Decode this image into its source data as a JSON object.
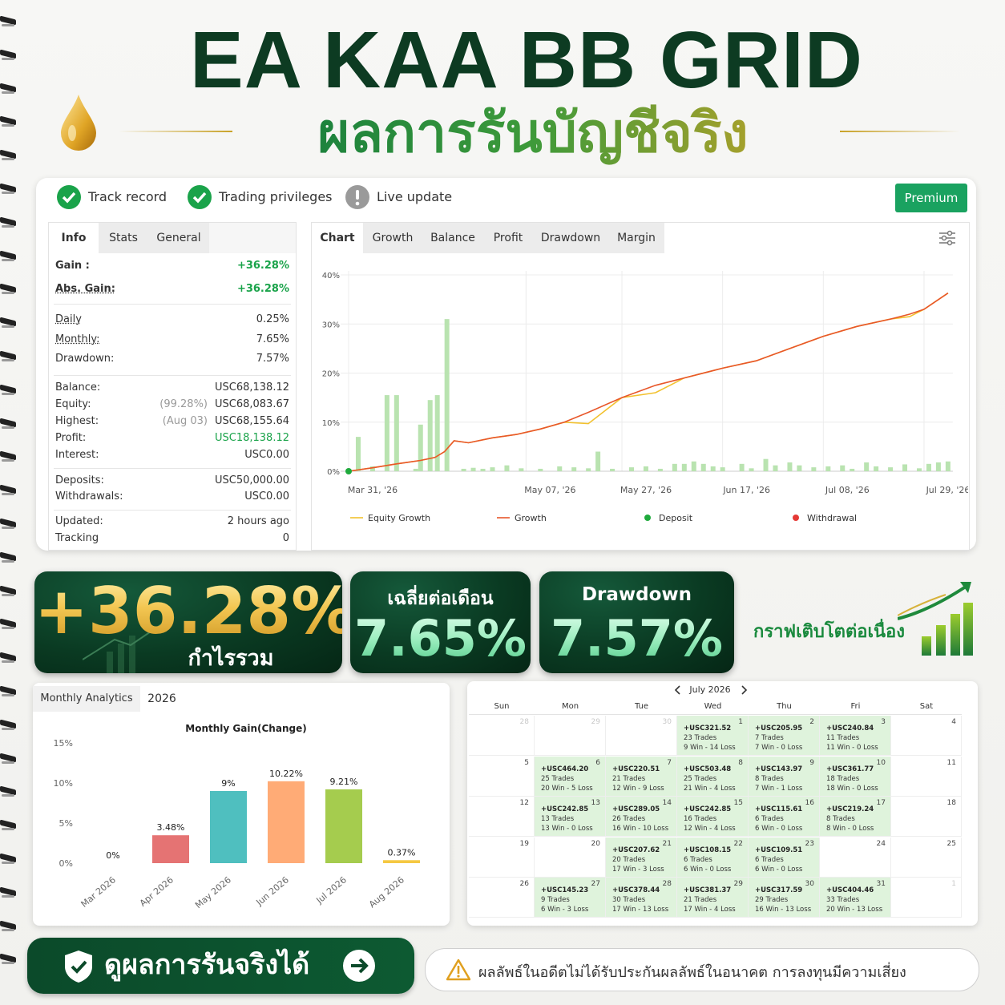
{
  "header": {
    "title": "EA KAA BB GRID",
    "subtitle": "ผลการรันบัญชีจริง"
  },
  "badges": [
    {
      "label": "Track record",
      "status": "ok"
    },
    {
      "label": "Trading privileges",
      "status": "ok"
    },
    {
      "label": "Live update",
      "status": "info"
    }
  ],
  "premium_button": "Premium",
  "info_panel": {
    "tabs": [
      "Info",
      "Stats",
      "General"
    ],
    "active_tab": 0,
    "groups": [
      [
        {
          "label": "Gain :",
          "value": "+36.28%",
          "bold": true,
          "color": "#1aa34a"
        },
        {
          "label": "Abs. Gain:",
          "value": "+36.28%",
          "bold": true,
          "underline": true,
          "color": "#1aa34a"
        }
      ],
      [
        {
          "label": "Daily",
          "value": "0.25%",
          "underline": true
        },
        {
          "label": "Monthly:",
          "value": "7.65%",
          "underline": true
        },
        {
          "label": "Drawdown:",
          "value": "7.57%"
        }
      ],
      [
        {
          "label": "Balance:",
          "value": "USC68,138.12"
        },
        {
          "label": "Equity:",
          "note": "(99.28%)",
          "value": "USC68,083.67"
        },
        {
          "label": "Highest:",
          "note": "(Aug 03)",
          "value": "USC68,155.64"
        },
        {
          "label": "Profit:",
          "value": "USC18,138.12",
          "color": "#1aa34a"
        },
        {
          "label": "Interest:",
          "value": "USC0.00"
        }
      ],
      [
        {
          "label": "Deposits:",
          "value": "USC50,000.00"
        },
        {
          "label": "Withdrawals:",
          "value": "USC0.00"
        }
      ],
      [
        {
          "label": "Updated:",
          "value": "2 hours ago"
        },
        {
          "label": "Tracking",
          "value": "0"
        }
      ]
    ]
  },
  "growth_chart": {
    "type": "line",
    "tabs": [
      "Chart",
      "Growth",
      "Balance",
      "Profit",
      "Drawdown",
      "Margin"
    ],
    "active_tab": 0,
    "xlim": [
      0,
      126
    ],
    "xticks": [
      {
        "value": 0,
        "label": "Mar 31, '26"
      },
      {
        "value": 37,
        "label": "May 07, '26"
      },
      {
        "value": 57,
        "label": "May 27, '26"
      },
      {
        "value": 78,
        "label": "Jun 17, '26"
      },
      {
        "value": 99,
        "label": "Jul 08, '26"
      },
      {
        "value": 120,
        "label": "Jul 29, '26"
      }
    ],
    "ylim": [
      0,
      40
    ],
    "yticks": [
      {
        "value": 0,
        "label": "0%"
      },
      {
        "value": 10,
        "label": "10%"
      },
      {
        "value": 20,
        "label": "20%"
      },
      {
        "value": 30,
        "label": "30%"
      },
      {
        "value": 40,
        "label": "40%"
      }
    ],
    "grid": true,
    "x": [
      0,
      5,
      10,
      15,
      18,
      20,
      22,
      25,
      30,
      35,
      40,
      45,
      50,
      57,
      64,
      68,
      70,
      78,
      85,
      92,
      99,
      106,
      113,
      117,
      120,
      125
    ],
    "series": [
      {
        "name": "Equity Growth",
        "color": "#f2c12e",
        "values": [
          0,
          0.7,
          1.5,
          2.2,
          2.8,
          4,
          6.2,
          5.8,
          6.8,
          7.5,
          8.6,
          10,
          9.7,
          15,
          16,
          18,
          19,
          21,
          22.5,
          25,
          27.5,
          29.5,
          31,
          31.5,
          33,
          36.3
        ]
      },
      {
        "name": "Growth",
        "color": "#e8572a",
        "values": [
          0,
          0.7,
          1.5,
          2.2,
          2.8,
          4,
          6.2,
          5.8,
          6.8,
          7.5,
          8.6,
          10,
          12,
          15,
          17.5,
          18.5,
          19,
          21,
          22.5,
          25,
          27.5,
          29.5,
          31,
          32,
          33,
          36.3
        ]
      }
    ],
    "bars": {
      "color": "#b9e3b0",
      "x": [
        2,
        5,
        8,
        10,
        14,
        15,
        17,
        18.5,
        20.5,
        24,
        26,
        28,
        30,
        33,
        36,
        40,
        44,
        47,
        50,
        52,
        55,
        59,
        62,
        65,
        68,
        70,
        72,
        74,
        76,
        78,
        82,
        84,
        87,
        89,
        92,
        94,
        97,
        100,
        103,
        105,
        108,
        110,
        113,
        116,
        119,
        121,
        123,
        125
      ],
      "values": [
        7,
        1,
        15.5,
        15.5,
        0.5,
        9.5,
        14.5,
        15.5,
        31,
        0.5,
        0.7,
        0.5,
        0.8,
        1.2,
        0.6,
        0.5,
        1,
        0.8,
        0.6,
        4,
        0.5,
        0.8,
        1,
        0.5,
        1.5,
        1.5,
        2,
        1.5,
        1,
        0.8,
        1.5,
        0.6,
        2.5,
        1.2,
        1.8,
        1.2,
        0.8,
        1,
        1.2,
        0.5,
        1.8,
        1,
        0.8,
        1.4,
        0.6,
        1.5,
        1.8,
        2
      ]
    },
    "markers": [
      {
        "name": "Deposit",
        "color": "#1faa3c",
        "x": [
          0
        ],
        "values": [
          0
        ]
      },
      {
        "name": "Withdrawal",
        "color": "#e53935",
        "x": [],
        "values": []
      }
    ]
  },
  "stat_cards": [
    {
      "value": "+36.28%",
      "label": "กำไรรวม"
    },
    {
      "label": "เฉลี่ยต่อเดือน",
      "value": "7.65%"
    },
    {
      "label": "Drawdown",
      "value": "7.57%"
    }
  ],
  "growth_tagline": "กราฟเติบโตต่อเนื่อง",
  "monthly_chart": {
    "type": "bar",
    "tabs": [
      "Monthly Analytics",
      "2026"
    ],
    "title": "Monthly Gain(Change)",
    "categories": [
      "Mar 2026",
      "Apr 2026",
      "May 2026",
      "Jun 2026",
      "Jul 2026",
      "Aug 2026"
    ],
    "values": [
      0,
      3.48,
      9,
      10.22,
      9.21,
      0.37
    ],
    "value_labels": [
      "0%",
      "3.48%",
      "9%",
      "10.22%",
      "9.21%",
      "0.37%"
    ],
    "colors": [
      "#cccccc",
      "#e57373",
      "#4fbfbf",
      "#ffab76",
      "#a5cc4e",
      "#f5c842"
    ],
    "ylim": [
      0,
      15
    ],
    "yticks": [
      {
        "value": 0,
        "label": "0%"
      },
      {
        "value": 5,
        "label": "5%"
      },
      {
        "value": 10,
        "label": "10%"
      },
      {
        "value": 15,
        "label": "15%"
      }
    ]
  },
  "calendar": {
    "month": "July 2026",
    "weekdays": [
      "Sun",
      "Mon",
      "Tue",
      "Wed",
      "Thu",
      "Fri",
      "Sat"
    ],
    "weeks": [
      [
        {
          "day": 28,
          "other_month": true
        },
        {
          "day": 29,
          "other_month": true
        },
        {
          "day": 30,
          "other_month": true
        },
        {
          "day": 1,
          "profit": "+USC321.52",
          "trades": "23 Trades",
          "record": "9 Win - 14 Loss"
        },
        {
          "day": 2,
          "profit": "+USC205.95",
          "trades": "7 Trades",
          "record": "7 Win - 0 Loss"
        },
        {
          "day": 3,
          "profit": "+USC240.84",
          "trades": "11 Trades",
          "record": "11 Win - 0 Loss"
        },
        {
          "day": 4
        }
      ],
      [
        {
          "day": 5
        },
        {
          "day": 6,
          "profit": "+USC464.20",
          "trades": "25 Trades",
          "record": "20 Win - 5 Loss"
        },
        {
          "day": 7,
          "profit": "+USC220.51",
          "trades": "21 Trades",
          "record": "12 Win - 9 Loss"
        },
        {
          "day": 8,
          "profit": "+USC503.48",
          "trades": "25 Trades",
          "record": "21 Win - 4 Loss"
        },
        {
          "day": 9,
          "profit": "+USC143.97",
          "trades": "8 Trades",
          "record": "7 Win - 1 Loss"
        },
        {
          "day": 10,
          "profit": "+USC361.77",
          "trades": "18 Trades",
          "record": "18 Win - 0 Loss"
        },
        {
          "day": 11
        }
      ],
      [
        {
          "day": 12
        },
        {
          "day": 13,
          "profit": "+USC242.85",
          "trades": "13 Trades",
          "record": "13 Win - 0 Loss"
        },
        {
          "day": 14,
          "profit": "+USC289.05",
          "trades": "26 Trades",
          "record": "16 Win - 10 Loss"
        },
        {
          "day": 15,
          "profit": "+USC242.85",
          "trades": "16 Trades",
          "record": "12 Win - 4 Loss"
        },
        {
          "day": 16,
          "profit": "+USC115.61",
          "trades": "6 Trades",
          "record": "6 Win - 0 Loss"
        },
        {
          "day": 17,
          "profit": "+USC219.24",
          "trades": "8 Trades",
          "record": "8 Win - 0 Loss"
        },
        {
          "day": 18
        }
      ],
      [
        {
          "day": 19
        },
        {
          "day": 20
        },
        {
          "day": 21,
          "profit": "+USC207.62",
          "trades": "20 Trades",
          "record": "17 Win - 3 Loss"
        },
        {
          "day": 22,
          "profit": "+USC108.15",
          "trades": "6 Trades",
          "record": "6 Win - 0 Loss"
        },
        {
          "day": 23,
          "profit": "+USC109.51",
          "trades": "6 Trades",
          "record": "6 Win - 0 Loss"
        },
        {
          "day": 24
        },
        {
          "day": 25
        }
      ],
      [
        {
          "day": 26
        },
        {
          "day": 27,
          "profit": "+USC145.23",
          "trades": "9 Trades",
          "record": "6 Win - 3 Loss"
        },
        {
          "day": 28,
          "profit": "+USC378.44",
          "trades": "30 Trades",
          "record": "17 Win - 13 Loss"
        },
        {
          "day": 29,
          "profit": "+USC381.37",
          "trades": "21 Trades",
          "record": "17 Win - 4 Loss"
        },
        {
          "day": 30,
          "profit": "+USC317.59",
          "trades": "29 Trades",
          "record": "16 Win - 13 Loss"
        },
        {
          "day": 31,
          "profit": "+USC404.46",
          "trades": "33 Trades",
          "record": "20 Win - 13 Loss"
        },
        {
          "day": 1,
          "other_month": true
        }
      ]
    ]
  },
  "footer": {
    "cta": "ดูผลการรันจริงได้",
    "disclaimer": "ผลลัพธ์ในอดีตไม่ได้รับประกันผลลัพธ์ในอนาคต การลงทุนมีความเสี่ยง"
  }
}
